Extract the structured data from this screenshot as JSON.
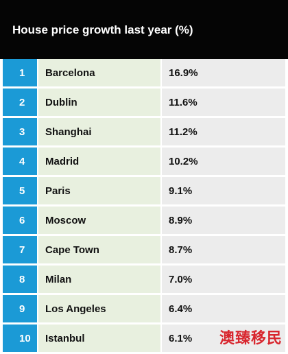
{
  "header": {
    "title": "House price growth last year (%)"
  },
  "chart_data": {
    "type": "table",
    "title": "House price growth last year (%)",
    "columns": [
      "rank",
      "city",
      "growth_pct"
    ],
    "rows": [
      {
        "rank": "1",
        "city": "Barcelona",
        "value_text": "16.9%",
        "value": 16.9
      },
      {
        "rank": "2",
        "city": "Dublin",
        "value_text": "11.6%",
        "value": 11.6
      },
      {
        "rank": "3",
        "city": "Shanghai",
        "value_text": "11.2%",
        "value": 11.2
      },
      {
        "rank": "4",
        "city": "Madrid",
        "value_text": "10.2%",
        "value": 10.2
      },
      {
        "rank": "5",
        "city": "Paris",
        "value_text": "9.1%",
        "value": 9.1
      },
      {
        "rank": "6",
        "city": "Moscow",
        "value_text": "8.9%",
        "value": 8.9
      },
      {
        "rank": "7",
        "city": "Cape Town",
        "value_text": "8.7%",
        "value": 8.7
      },
      {
        "rank": "8",
        "city": "Milan",
        "value_text": "7.0%",
        "value": 7.0
      },
      {
        "rank": "9",
        "city": "Los Angeles",
        "value_text": "6.4%",
        "value": 6.4
      },
      {
        "rank": "10",
        "city": "Istanbul",
        "value_text": "6.1%",
        "value": 6.1
      }
    ]
  },
  "watermark": {
    "text": "澳臻移民"
  },
  "colors": {
    "header_bg": "#050505",
    "rank_bg": "#1b9ad6",
    "city_bg": "#e8f0df",
    "value_bg": "#ececec",
    "watermark": "#d8262e"
  }
}
